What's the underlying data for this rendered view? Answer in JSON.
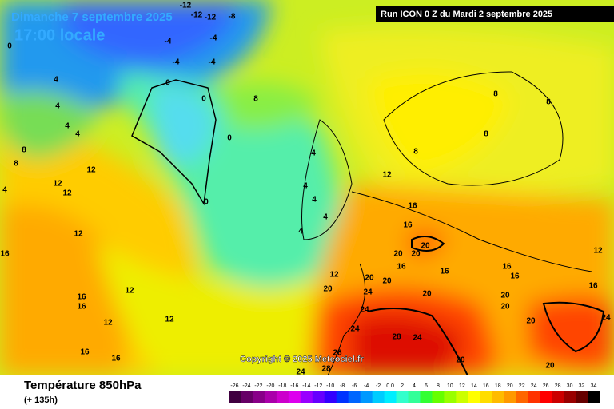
{
  "header": {
    "date": "Dimanche 7 septembre 2025",
    "time": "17:00 locale",
    "run": "Run ICON 0 Z du Mardi 2 septembre 2025"
  },
  "copyright": "Copyright © 2025 Meteociel.fr",
  "footer": {
    "title": "Température 850hPa",
    "lead": "(+ 135h)"
  },
  "scale": {
    "labels": [
      "-26",
      "-24",
      "-22",
      "-20",
      "-18",
      "-16",
      "-14",
      "-12",
      "-10",
      "-8",
      "-6",
      "-4",
      "-2",
      "0.0",
      "2",
      "4",
      "6",
      "8",
      "10",
      "12",
      "14",
      "16",
      "18",
      "20",
      "22",
      "24",
      "26",
      "28",
      "30",
      "32",
      "34"
    ],
    "colors": [
      "#400040",
      "#660066",
      "#880088",
      "#aa00aa",
      "#cc00cc",
      "#dd00ee",
      "#9900ff",
      "#6600ff",
      "#3300ff",
      "#0033ff",
      "#0066ff",
      "#0099ff",
      "#00ccff",
      "#00eeff",
      "#33ffcc",
      "#33ff99",
      "#33ff33",
      "#66ff00",
      "#99ff00",
      "#ccff00",
      "#ffff00",
      "#ffdd00",
      "#ffbb00",
      "#ff9900",
      "#ff6600",
      "#ff3300",
      "#ff0000",
      "#cc0000",
      "#990000",
      "#660000",
      "#000000"
    ]
  },
  "map_labels": [
    "-12",
    "-12",
    "-12",
    "-8",
    "-4",
    "-4",
    "-4",
    "-4",
    "0",
    "0",
    "0",
    "0",
    "0",
    "4",
    "4",
    "4",
    "4",
    "4",
    "4",
    "4",
    "4",
    "4",
    "4",
    "8",
    "8",
    "8",
    "8",
    "8",
    "8",
    "8",
    "12",
    "12",
    "12",
    "12",
    "12",
    "12",
    "12",
    "12",
    "12",
    "12",
    "16",
    "16",
    "16",
    "16",
    "16",
    "16",
    "16",
    "16",
    "16",
    "16",
    "16",
    "16",
    "20",
    "20",
    "20",
    "20",
    "20",
    "20",
    "20",
    "20",
    "20",
    "20",
    "20",
    "24",
    "24",
    "24",
    "24",
    "24",
    "24",
    "28",
    "28",
    "28",
    "20"
  ]
}
